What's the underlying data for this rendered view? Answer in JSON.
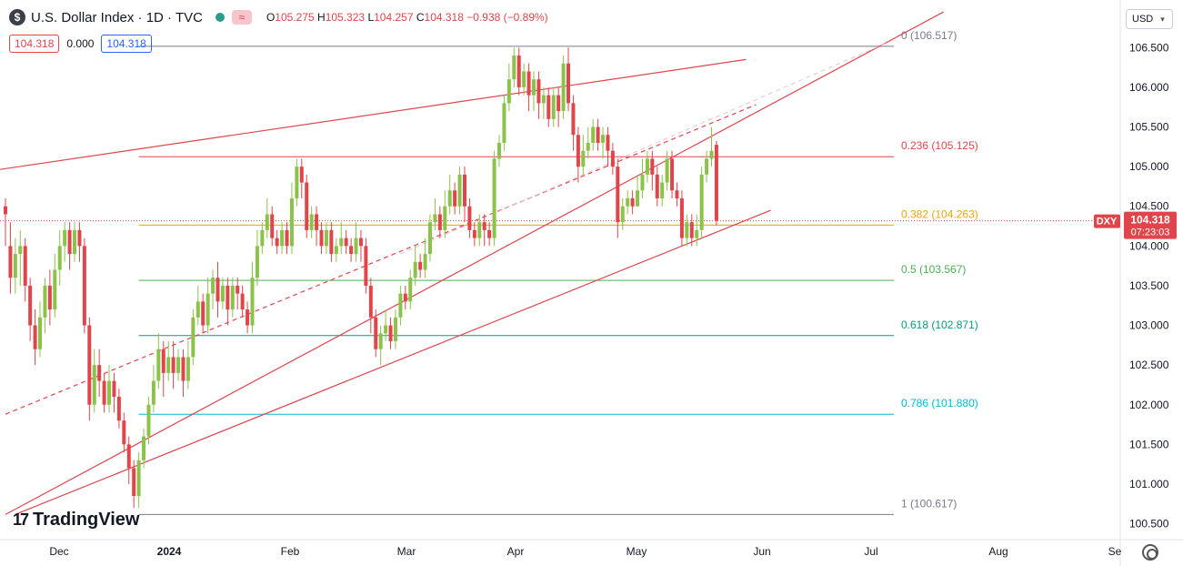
{
  "header": {
    "symbol_badge": "$",
    "title": "U.S. Dollar Index · 1D · TVC",
    "wave_icon": "≈",
    "ohlc": {
      "o_label": "O",
      "o": "105.275",
      "h_label": "H",
      "h": "105.323",
      "l_label": "L",
      "l": "104.257",
      "c_label": "C",
      "c": "104.318",
      "change": "−0.938 (−0.89%)"
    },
    "sell": "104.318",
    "spread": "0.000",
    "buy": "104.318"
  },
  "currency_button": "USD",
  "logo": {
    "mark": "17",
    "text": "TradingView"
  },
  "price_badge": {
    "ticker": "DXY",
    "price": "104.318",
    "countdown": "07:23:03"
  },
  "colors": {
    "up": "#26a69a",
    "down": "#ef5350",
    "up_body": "#8bc34a",
    "down_body": "#e0454c",
    "channel": "#e0454c"
  },
  "chart_data": {
    "type": "candlestick",
    "title": "U.S. Dollar Index · 1D · TVC",
    "x_ticks": [
      "Dec",
      "2024",
      "Feb",
      "Mar",
      "Apr",
      "May",
      "Jun",
      "Jul",
      "Aug",
      "Se"
    ],
    "y_ticks": [
      "106.500",
      "106.000",
      "105.500",
      "105.000",
      "104.500",
      "104.000",
      "103.500",
      "103.000",
      "102.500",
      "102.000",
      "101.500",
      "101.000",
      "100.500"
    ],
    "ylim": [
      100.3,
      107.1
    ],
    "fib_levels": [
      {
        "label": "0 (106.517)",
        "value": 106.517,
        "color": "#787b86"
      },
      {
        "label": "0.236 (105.125)",
        "value": 105.125,
        "color": "#e0454c"
      },
      {
        "label": "0.382 (104.263)",
        "value": 104.263,
        "color": "#f0a30a"
      },
      {
        "label": "0.5 (103.567)",
        "value": 103.567,
        "color": "#4caf50"
      },
      {
        "label": "0.618 (102.871)",
        "value": 102.871,
        "color": "#089981"
      },
      {
        "label": "0.786 (101.880)",
        "value": 101.88,
        "color": "#00bcd4"
      },
      {
        "label": "1 (100.617)",
        "value": 100.617,
        "color": "#787b86"
      }
    ],
    "candles": [
      [
        104.5,
        104.4,
        104.6,
        104.0
      ],
      [
        104.0,
        103.6,
        104.3,
        103.4
      ],
      [
        103.6,
        103.9,
        104.1,
        103.4
      ],
      [
        103.9,
        104.0,
        104.2,
        103.5
      ],
      [
        104.0,
        103.5,
        104.1,
        103.3
      ],
      [
        103.5,
        103.0,
        103.6,
        102.8
      ],
      [
        103.0,
        102.7,
        103.2,
        102.5
      ],
      [
        102.7,
        103.1,
        103.3,
        102.6
      ],
      [
        103.1,
        103.5,
        103.6,
        102.9
      ],
      [
        103.5,
        103.2,
        103.7,
        103.0
      ],
      [
        103.2,
        103.7,
        103.9,
        103.1
      ],
      [
        103.7,
        104.0,
        104.2,
        103.5
      ],
      [
        104.0,
        104.2,
        104.3,
        103.8
      ],
      [
        104.2,
        103.9,
        104.3,
        103.7
      ],
      [
        103.9,
        104.2,
        104.3,
        103.8
      ],
      [
        104.2,
        104.0,
        104.3,
        103.8
      ],
      [
        104.0,
        103.0,
        104.1,
        102.9
      ],
      [
        103.0,
        102.0,
        103.1,
        101.8
      ],
      [
        102.0,
        102.5,
        102.7,
        101.9
      ],
      [
        102.5,
        102.3,
        102.7,
        102.1
      ],
      [
        102.3,
        102.0,
        102.4,
        101.9
      ],
      [
        102.0,
        102.3,
        102.5,
        101.9
      ],
      [
        102.3,
        102.1,
        102.4,
        101.9
      ],
      [
        102.1,
        101.8,
        102.2,
        101.7
      ],
      [
        101.8,
        101.5,
        101.9,
        101.4
      ],
      [
        101.5,
        101.2,
        101.6,
        101.0
      ],
      [
        101.2,
        100.85,
        101.3,
        100.7
      ],
      [
        100.85,
        101.3,
        101.4,
        100.7
      ],
      [
        101.3,
        101.6,
        101.7,
        101.2
      ],
      [
        101.6,
        102.0,
        102.1,
        101.5
      ],
      [
        102.0,
        102.3,
        102.5,
        101.9
      ],
      [
        102.3,
        102.7,
        102.9,
        102.2
      ],
      [
        102.7,
        102.4,
        102.8,
        102.1
      ],
      [
        102.4,
        102.6,
        102.8,
        102.3
      ],
      [
        102.6,
        102.4,
        102.8,
        102.2
      ],
      [
        102.4,
        102.6,
        102.7,
        102.3
      ],
      [
        102.6,
        102.3,
        102.7,
        102.1
      ],
      [
        102.3,
        102.6,
        102.8,
        102.2
      ],
      [
        102.6,
        103.1,
        103.2,
        102.5
      ],
      [
        103.1,
        103.3,
        103.5,
        103.0
      ],
      [
        103.3,
        103.0,
        103.4,
        102.9
      ],
      [
        103.0,
        103.4,
        103.6,
        102.9
      ],
      [
        103.4,
        103.6,
        103.7,
        103.2
      ],
      [
        103.6,
        103.3,
        103.8,
        103.1
      ],
      [
        103.3,
        103.5,
        103.6,
        103.2
      ],
      [
        103.5,
        103.2,
        103.6,
        103.0
      ],
      [
        103.2,
        103.5,
        103.6,
        103.1
      ],
      [
        103.5,
        103.4,
        103.6,
        103.2
      ],
      [
        103.4,
        103.2,
        103.5,
        103.1
      ],
      [
        103.2,
        103.0,
        103.3,
        102.9
      ],
      [
        103.0,
        103.6,
        103.8,
        102.9
      ],
      [
        103.6,
        104.0,
        104.2,
        103.5
      ],
      [
        104.0,
        104.2,
        104.3,
        103.9
      ],
      [
        104.2,
        104.4,
        104.6,
        104.1
      ],
      [
        104.4,
        104.1,
        104.5,
        104.0
      ],
      [
        104.1,
        104.0,
        104.2,
        103.9
      ],
      [
        104.0,
        104.2,
        104.3,
        103.9
      ],
      [
        104.2,
        104.0,
        104.3,
        103.9
      ],
      [
        104.0,
        104.6,
        104.8,
        103.9
      ],
      [
        104.6,
        105.0,
        105.1,
        104.5
      ],
      [
        105.0,
        104.8,
        105.1,
        104.6
      ],
      [
        104.8,
        104.2,
        104.9,
        104.1
      ],
      [
        104.2,
        104.4,
        104.5,
        104.1
      ],
      [
        104.4,
        104.2,
        104.5,
        104.0
      ],
      [
        104.2,
        104.0,
        104.3,
        103.9
      ],
      [
        104.0,
        104.2,
        104.3,
        103.9
      ],
      [
        104.2,
        103.9,
        104.3,
        103.8
      ],
      [
        103.9,
        104.0,
        104.1,
        103.8
      ],
      [
        104.0,
        104.1,
        104.3,
        103.9
      ],
      [
        104.1,
        104.0,
        104.2,
        103.9
      ],
      [
        104.0,
        103.9,
        104.1,
        103.8
      ],
      [
        103.9,
        104.1,
        104.3,
        103.8
      ],
      [
        104.1,
        104.0,
        104.2,
        103.8
      ],
      [
        104.0,
        103.5,
        104.1,
        103.4
      ],
      [
        103.5,
        103.1,
        103.6,
        102.9
      ],
      [
        103.1,
        102.7,
        103.2,
        102.6
      ],
      [
        102.7,
        102.9,
        103.0,
        102.5
      ],
      [
        102.9,
        103.0,
        103.2,
        102.8
      ],
      [
        103.0,
        102.8,
        103.1,
        102.7
      ],
      [
        102.8,
        103.1,
        103.2,
        102.7
      ],
      [
        103.1,
        103.4,
        103.5,
        103.0
      ],
      [
        103.4,
        103.3,
        103.5,
        103.2
      ],
      [
        103.3,
        103.6,
        103.7,
        103.2
      ],
      [
        103.6,
        103.8,
        104.0,
        103.5
      ],
      [
        103.8,
        103.7,
        103.9,
        103.6
      ],
      [
        103.7,
        103.9,
        104.1,
        103.6
      ],
      [
        103.9,
        104.3,
        104.4,
        103.8
      ],
      [
        104.3,
        104.4,
        104.6,
        104.2
      ],
      [
        104.4,
        104.2,
        104.5,
        104.1
      ],
      [
        104.2,
        104.5,
        104.7,
        104.1
      ],
      [
        104.5,
        104.7,
        104.9,
        104.4
      ],
      [
        104.7,
        104.5,
        104.8,
        104.4
      ],
      [
        104.5,
        104.9,
        105.0,
        104.4
      ],
      [
        104.9,
        104.5,
        105.0,
        104.3
      ],
      [
        104.5,
        104.2,
        104.6,
        104.1
      ],
      [
        104.2,
        104.1,
        104.3,
        104.0
      ],
      [
        104.1,
        104.3,
        104.4,
        104.0
      ],
      [
        104.3,
        104.2,
        104.4,
        104.0
      ],
      [
        104.2,
        104.1,
        104.3,
        104.0
      ],
      [
        104.1,
        105.1,
        105.2,
        104.0
      ],
      [
        105.1,
        105.3,
        105.4,
        105.0
      ],
      [
        105.3,
        105.8,
        105.9,
        105.2
      ],
      [
        105.8,
        106.1,
        106.3,
        105.7
      ],
      [
        106.1,
        106.4,
        106.5,
        106.0
      ],
      [
        106.4,
        106.0,
        106.5,
        105.9
      ],
      [
        106.0,
        106.2,
        106.3,
        105.9
      ],
      [
        106.2,
        105.9,
        106.3,
        105.7
      ],
      [
        105.9,
        106.1,
        106.2,
        105.7
      ],
      [
        106.1,
        105.8,
        106.2,
        105.6
      ],
      [
        105.8,
        105.9,
        106.0,
        105.6
      ],
      [
        105.9,
        105.6,
        106.0,
        105.5
      ],
      [
        105.6,
        105.9,
        106.0,
        105.5
      ],
      [
        105.9,
        105.7,
        106.0,
        105.5
      ],
      [
        105.7,
        106.3,
        106.4,
        105.6
      ],
      [
        106.3,
        105.8,
        106.5,
        105.7
      ],
      [
        105.8,
        105.4,
        105.9,
        105.2
      ],
      [
        105.4,
        105.0,
        105.5,
        104.8
      ],
      [
        105.0,
        105.2,
        105.4,
        104.9
      ],
      [
        105.2,
        105.3,
        105.5,
        105.1
      ],
      [
        105.3,
        105.5,
        105.6,
        105.2
      ],
      [
        105.5,
        105.3,
        105.6,
        105.2
      ],
      [
        105.3,
        105.4,
        105.5,
        105.1
      ],
      [
        105.4,
        105.2,
        105.5,
        105.0
      ],
      [
        105.2,
        105.0,
        105.3,
        104.9
      ],
      [
        105.0,
        104.3,
        105.1,
        104.1
      ],
      [
        104.3,
        104.5,
        104.6,
        104.2
      ],
      [
        104.5,
        104.6,
        104.7,
        104.4
      ],
      [
        104.6,
        104.5,
        104.7,
        104.4
      ],
      [
        104.5,
        104.7,
        104.9,
        104.5
      ],
      [
        104.7,
        104.9,
        105.1,
        104.6
      ],
      [
        104.9,
        105.1,
        105.2,
        104.8
      ],
      [
        105.1,
        104.9,
        105.2,
        104.7
      ],
      [
        104.9,
        104.6,
        105.0,
        104.5
      ],
      [
        104.6,
        104.8,
        104.9,
        104.5
      ],
      [
        104.8,
        105.1,
        105.2,
        104.7
      ],
      [
        105.1,
        104.7,
        105.2,
        104.6
      ],
      [
        104.7,
        104.6,
        104.8,
        104.5
      ],
      [
        104.6,
        104.1,
        104.7,
        104.0
      ],
      [
        104.1,
        104.3,
        104.4,
        104.0
      ],
      [
        104.3,
        104.1,
        104.4,
        104.0
      ],
      [
        104.1,
        104.2,
        104.4,
        104.0
      ],
      [
        104.2,
        104.9,
        105.0,
        104.1
      ],
      [
        104.9,
        105.1,
        105.2,
        104.8
      ],
      [
        105.1,
        105.2,
        105.5,
        105.0
      ],
      [
        105.275,
        104.318,
        105.323,
        104.257
      ]
    ],
    "channel_lines": [
      {
        "from": [
          0,
          100.617
        ],
        "to": [
          190,
          106.95
        ]
      },
      {
        "from": [
          -30,
          104.7
        ],
        "to": [
          150,
          106.35
        ]
      },
      {
        "from": [
          2,
          100.617
        ],
        "to": [
          155,
          104.45
        ]
      }
    ],
    "mid_line": {
      "from": [
        0,
        101.88
      ],
      "to": [
        152,
        105.78
      ]
    }
  }
}
